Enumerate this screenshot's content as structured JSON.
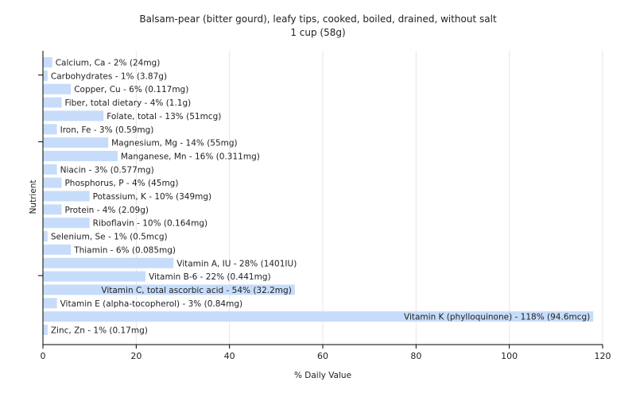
{
  "chart_data": {
    "type": "bar",
    "orientation": "horizontal",
    "title": "Balsam-pear (bitter gourd), leafy tips, cooked, boiled, drained, without salt",
    "subtitle": "1 cup (58g)",
    "xlabel": "% Daily Value",
    "ylabel": "Nutrient",
    "xlim": [
      0,
      120
    ],
    "xticks": [
      0,
      20,
      40,
      60,
      80,
      100,
      120
    ],
    "grid": true,
    "bar_color": "#c6dcfa",
    "categories": [
      "Calcium, Ca",
      "Carbohydrates",
      "Copper, Cu",
      "Fiber, total dietary",
      "Folate, total",
      "Iron, Fe",
      "Magnesium, Mg",
      "Manganese, Mn",
      "Niacin",
      "Phosphorus, P",
      "Potassium, K",
      "Protein",
      "Riboflavin",
      "Selenium, Se",
      "Thiamin",
      "Vitamin A, IU",
      "Vitamin B-6",
      "Vitamin C, total ascorbic acid",
      "Vitamin E (alpha-tocopherol)",
      "Vitamin K (phylloquinone)",
      "Zinc, Zn"
    ],
    "values": [
      2,
      1,
      6,
      4,
      13,
      3,
      14,
      16,
      3,
      4,
      10,
      4,
      10,
      1,
      6,
      28,
      22,
      54,
      3,
      118,
      1
    ],
    "labels": [
      "Calcium, Ca - 2% (24mg)",
      "Carbohydrates - 1% (3.87g)",
      "Copper, Cu - 6% (0.117mg)",
      "Fiber, total dietary - 4% (1.1g)",
      "Folate, total - 13% (51mcg)",
      "Iron, Fe - 3% (0.59mg)",
      "Magnesium, Mg - 14% (55mg)",
      "Manganese, Mn - 16% (0.311mg)",
      "Niacin - 3% (0.577mg)",
      "Phosphorus, P - 4% (45mg)",
      "Potassium, K - 10% (349mg)",
      "Protein - 4% (2.09g)",
      "Riboflavin - 10% (0.164mg)",
      "Selenium, Se - 1% (0.5mcg)",
      "Thiamin - 6% (0.085mg)",
      "Vitamin A, IU - 28% (1401IU)",
      "Vitamin B-6 - 22% (0.441mg)",
      "Vitamin C, total ascorbic acid - 54% (32.2mg)",
      "Vitamin E (alpha-tocopherol) - 3% (0.84mg)",
      "Vitamin K (phylloquinone) - 118% (94.6mcg)",
      "Zinc, Zn - 1% (0.17mg)"
    ]
  }
}
